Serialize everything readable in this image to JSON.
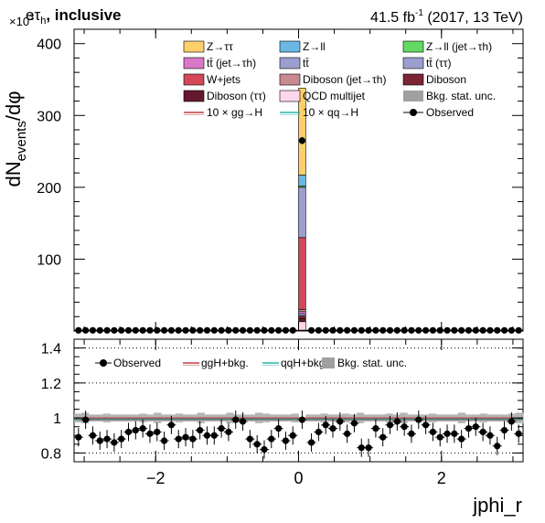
{
  "header": {
    "channel_e": "e",
    "channel_tau": "τ",
    "channel_tau_sub": "h",
    "channel_suffix": ", inclusive",
    "lumi_value": "41.5 fb",
    "lumi_exp": "-1",
    "lumi_suffix": " (2017, 13 TeV)"
  },
  "chart_data": [
    {
      "type": "bar",
      "panel": "main",
      "xlabel": "jphi_r",
      "ylabel_main": "dN",
      "ylabel_sub": "events",
      "ylabel_tail": "/dφ",
      "y_multiplier_base": "×10",
      "y_multiplier_exp": "3",
      "xlim": [
        -3.1416,
        3.1416
      ],
      "ylim": [
        0,
        420
      ],
      "x_ticks": [
        -2,
        0,
        2
      ],
      "x_tick_labels": [
        "−2",
        "0",
        "2"
      ],
      "y_ticks": [
        100,
        200,
        300,
        400
      ],
      "y_tick_labels": [
        "100",
        "200",
        "300",
        "400"
      ],
      "spike_bin": [
        0.0,
        0.1
      ],
      "spike_stack": [
        {
          "name": "QCD multijet",
          "key": "qcd",
          "value": 13,
          "color": "#fcd7ec"
        },
        {
          "name": "Diboson (ττ)",
          "key": "diboson_tt",
          "value": 4,
          "color": "#64192d"
        },
        {
          "name": "Diboson",
          "key": "diboson",
          "value": 4,
          "color": "#7b2635"
        },
        {
          "name": "tt̄ (ττ)",
          "key": "tt_tt",
          "value": 3,
          "color": "#9c9ed0"
        },
        {
          "name": "tt̄ (jet→τh)",
          "key": "tt_jet",
          "value": 3,
          "color": "#d877c8"
        },
        {
          "name": "Diboson (jet→τh)",
          "key": "diboson_jet",
          "value": 3,
          "color": "#c88a8f"
        },
        {
          "name": "W+jets",
          "key": "wjets",
          "value": 100,
          "color": "#d4485a"
        },
        {
          "name": "tt̄",
          "key": "tt",
          "value": 70,
          "color": "#9c9ed0"
        },
        {
          "name": "Z→ll (jet→τh)",
          "key": "zll_jet",
          "value": 2,
          "color": "#62d962"
        },
        {
          "name": "Z→ll",
          "key": "zll",
          "value": 15,
          "color": "#6ab7e5"
        },
        {
          "name": "Z→ττ",
          "key": "ztt",
          "value": 121,
          "color": "#fccf6b"
        }
      ],
      "observed_spike": {
        "x": 0.05,
        "y": 265
      },
      "observed_flat_level": 0.9
    },
    {
      "type": "scatter",
      "panel": "ratio",
      "xlim": [
        -3.1416,
        3.1416
      ],
      "ylim": [
        0.75,
        1.45
      ],
      "y_ticks": [
        0.8,
        1.0,
        1.2,
        1.4
      ],
      "y_tick_labels": [
        "0.8",
        "1",
        "1.2",
        "1.4"
      ],
      "dotted_lines": [
        0.8,
        1.2,
        1.4
      ],
      "x": [
        -3.08,
        -2.98,
        -2.88,
        -2.78,
        -2.68,
        -2.58,
        -2.48,
        -2.38,
        -2.28,
        -2.18,
        -2.08,
        -1.98,
        -1.88,
        -1.78,
        -1.68,
        -1.58,
        -1.48,
        -1.38,
        -1.28,
        -1.18,
        -1.08,
        -0.98,
        -0.88,
        -0.78,
        -0.68,
        -0.58,
        -0.48,
        -0.38,
        -0.28,
        -0.18,
        -0.08,
        0.05,
        0.18,
        0.28,
        0.38,
        0.48,
        0.58,
        0.68,
        0.78,
        0.88,
        0.98,
        1.08,
        1.18,
        1.28,
        1.38,
        1.48,
        1.58,
        1.68,
        1.78,
        1.88,
        1.98,
        2.08,
        2.18,
        2.28,
        2.38,
        2.48,
        2.58,
        2.68,
        2.78,
        2.88,
        2.98,
        3.08
      ],
      "ratio": [
        0.89,
        0.99,
        0.9,
        0.87,
        0.88,
        0.86,
        0.88,
        0.92,
        0.93,
        0.94,
        0.91,
        0.92,
        0.87,
        0.96,
        0.88,
        0.89,
        0.88,
        0.93,
        0.9,
        0.9,
        0.94,
        0.92,
        0.99,
        0.98,
        0.88,
        0.85,
        0.82,
        0.88,
        0.94,
        0.87,
        0.9,
        0.99,
        0.86,
        0.92,
        0.96,
        0.94,
        0.98,
        0.91,
        0.97,
        0.83,
        0.83,
        0.94,
        0.89,
        0.96,
        0.98,
        0.95,
        0.91,
        0.99,
        0.96,
        0.92,
        0.89,
        0.91,
        0.91,
        0.88,
        0.94,
        0.95,
        0.92,
        0.9,
        0.84,
        0.93,
        0.98,
        0.91
      ],
      "unc_band_halfwidth": [
        0.025,
        0.03,
        0.02,
        0.02,
        0.025,
        0.02,
        0.02,
        0.02,
        0.02,
        0.025,
        0.02,
        0.03,
        0.02,
        0.02,
        0.025,
        0.02,
        0.02,
        0.03,
        0.02,
        0.02,
        0.02,
        0.03,
        0.02,
        0.02,
        0.02,
        0.03,
        0.025,
        0.02,
        0.02,
        0.02,
        0.025,
        0.002,
        0.02,
        0.02,
        0.025,
        0.02,
        0.02,
        0.025,
        0.02,
        0.03,
        0.02,
        0.02,
        0.02,
        0.025,
        0.02,
        0.03,
        0.02,
        0.02,
        0.02,
        0.025,
        0.02,
        0.02,
        0.02,
        0.03,
        0.02,
        0.02,
        0.025,
        0.02,
        0.02,
        0.02,
        0.025,
        0.03
      ],
      "ggH_level": 1.0,
      "qqH_level": 0.993,
      "legend": [
        {
          "label": "Observed",
          "kind": "marker"
        },
        {
          "label": "ggH+bkg.",
          "kind": "line",
          "color": "#c23b3b"
        },
        {
          "label": "qqH+bkg.",
          "kind": "line",
          "color": "#2ab3a3"
        },
        {
          "label": "Bkg. stat. unc.",
          "kind": "box",
          "color": "#a0a0a0"
        }
      ]
    }
  ],
  "legend_main": [
    {
      "label": "Z→ττ",
      "kind": "box",
      "color": "#fccf6b"
    },
    {
      "label": "Z→ll",
      "kind": "box",
      "color": "#6ab7e5"
    },
    {
      "label": "Z→ll (jet→τh)",
      "kind": "box",
      "color": "#62d962"
    },
    {
      "label": "tt̄ (jet→τh)",
      "kind": "box",
      "color": "#d877c8"
    },
    {
      "label": "tt̄",
      "kind": "box",
      "color": "#9c9ed0"
    },
    {
      "label": "tt̄ (ττ)",
      "kind": "box",
      "color": "#9c9ed0"
    },
    {
      "label": "W+jets",
      "kind": "box",
      "color": "#d4485a"
    },
    {
      "label": "Diboson (jet→τh)",
      "kind": "box",
      "color": "#c88a8f"
    },
    {
      "label": "Diboson",
      "kind": "box",
      "color": "#7b2635"
    },
    {
      "label": "Diboson (ττ)",
      "kind": "box",
      "color": "#64192d"
    },
    {
      "label": "QCD multijet",
      "kind": "box",
      "color": "#fcd7ec"
    },
    {
      "label": "Bkg. stat. unc.",
      "kind": "box",
      "color": "#a0a0a0"
    },
    {
      "label": "10 × gg→H",
      "kind": "line",
      "color": "#c23b3b"
    },
    {
      "label": "10 × qq→H",
      "kind": "line",
      "color": "#2ab3a3"
    },
    {
      "label": "Observed",
      "kind": "marker"
    }
  ]
}
